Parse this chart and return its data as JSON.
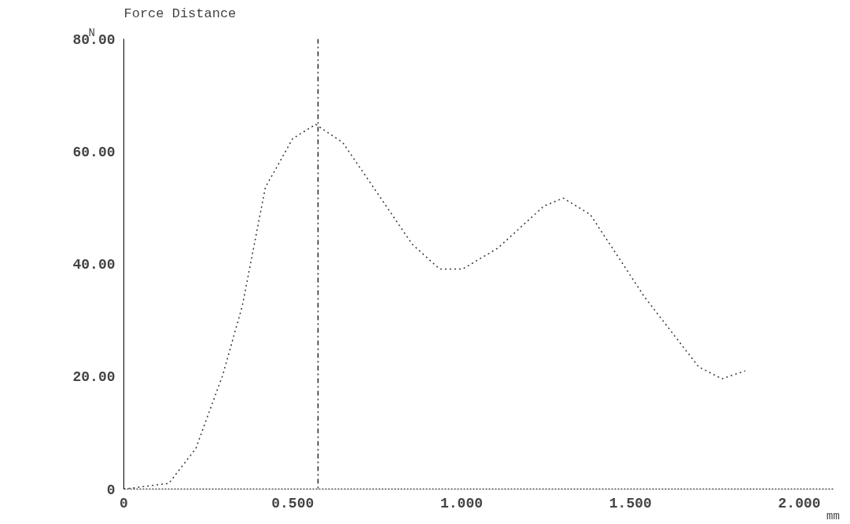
{
  "chart_data": {
    "type": "line",
    "title": "Force Distance",
    "ylabel": "N",
    "xlabel": "mm",
    "x": [
      0,
      0.133,
      0.213,
      0.293,
      0.351,
      0.419,
      0.5,
      0.568,
      0.648,
      0.854,
      0.935,
      1.003,
      1.107,
      1.244,
      1.301,
      1.381,
      1.542,
      1.702,
      1.771,
      1.84
    ],
    "series": [
      {
        "color": "#333333",
        "values": [
          0,
          1,
          7.2,
          20.3,
          32.6,
          53.6,
          62.3,
          64.8,
          61.6,
          43.5,
          39.1,
          39.1,
          42.8,
          50.3,
          51.7,
          48.8,
          34.1,
          21.7,
          19.6,
          21.0
        ]
      }
    ],
    "xlim": [
      0,
      2.1
    ],
    "ylim": [
      0,
      80
    ],
    "xticks": [
      0,
      {
        "value": 0.5,
        "label": "0.500"
      },
      {
        "value": 1,
        "label": "1.000"
      },
      {
        "value": 1.5,
        "label": "1.500"
      },
      {
        "value": 2,
        "label": "2.000"
      }
    ],
    "yticks": [
      0,
      {
        "value": 20,
        "label": "20.00"
      },
      {
        "value": 40,
        "label": "40.00"
      },
      {
        "value": 60,
        "label": "60.00"
      },
      {
        "value": 80,
        "label": "80.00"
      }
    ],
    "ref_lines": [
      {
        "axis": "x",
        "value": 0.575,
        "color": "#222222",
        "line_style": "dashdot"
      }
    ],
    "grid": false,
    "line_style": "dotted",
    "marker": "none"
  }
}
